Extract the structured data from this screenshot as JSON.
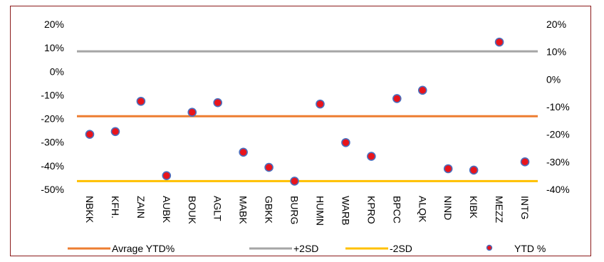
{
  "chart_data": {
    "type": "scatter",
    "categories": [
      "NBKK",
      "KFH.",
      "ZAIN",
      "AUBK",
      "BOUK",
      "AGLT",
      "MABK",
      "GBKK",
      "BURG",
      "HUMN",
      "WARB",
      "KPRO",
      "BPCC",
      "ALQK",
      "NIND",
      "KIBK",
      "MEZZ",
      "INTG"
    ],
    "series": [
      {
        "name": "YTD %",
        "axis": "right",
        "color": "#e8141b",
        "values": [
          -20,
          -19,
          -8,
          -35,
          -12,
          -8.5,
          -26.5,
          -32,
          -37,
          -9,
          -23,
          -28,
          -7,
          -4,
          -32.5,
          -33,
          13.5,
          -30
        ]
      }
    ],
    "reference_lines": [
      {
        "name": "Avrage YTD%",
        "axis": "left",
        "value": -19,
        "color": "#ed7d31"
      },
      {
        "name": "+2SD",
        "axis": "left",
        "value": 8.5,
        "color": "#a5a5a5"
      },
      {
        "name": "-2SD",
        "axis": "left",
        "value": -46.5,
        "color": "#ffc000"
      }
    ],
    "left_axis": {
      "ylim": [
        -50,
        20
      ],
      "ticks": [
        "20%",
        "10%",
        "0%",
        "-10%",
        "-20%",
        "-30%",
        "-40%",
        "-50%"
      ]
    },
    "right_axis": {
      "ylim": [
        -40,
        20
      ],
      "ticks": [
        "20%",
        "10%",
        "0%",
        "-10%",
        "-20%",
        "-30%",
        "-40%"
      ]
    },
    "legend": {
      "position": "bottom",
      "entries": [
        "Avrage YTD%",
        "+2SD",
        "-2SD",
        "YTD %"
      ]
    },
    "grid": false
  }
}
